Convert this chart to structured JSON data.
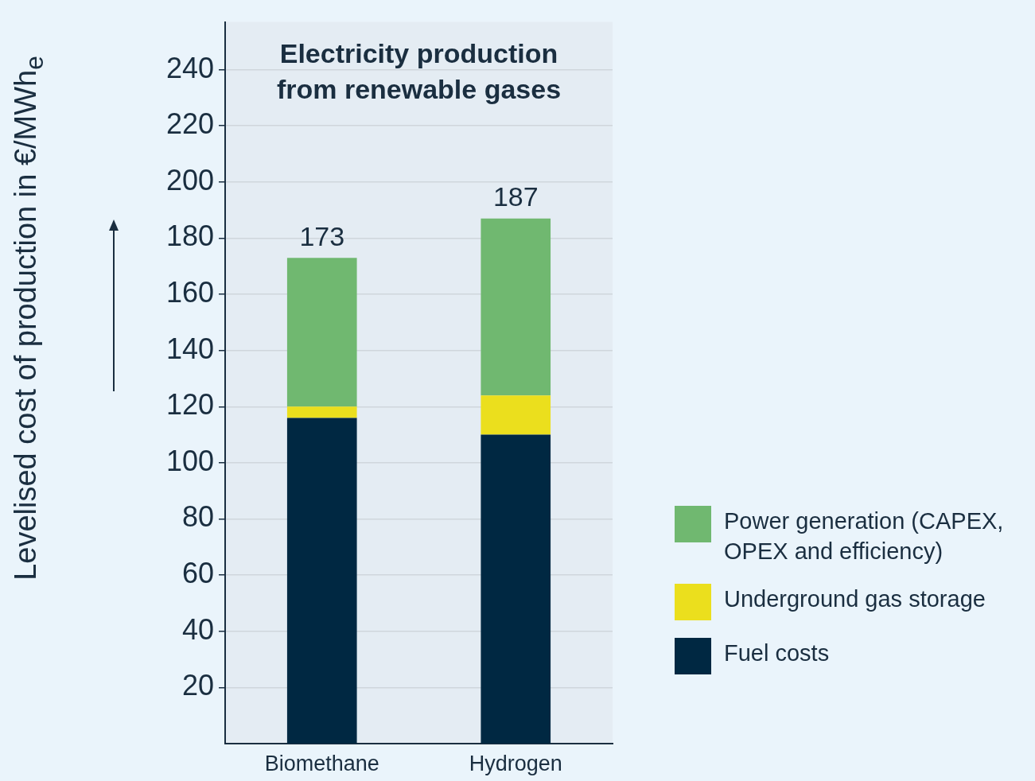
{
  "chart_data": {
    "type": "bar",
    "stacked": true,
    "title": "Electricity production from renewable gases",
    "ylabel": "Levelised cost of production in €/MWh$_{e}$",
    "categories": [
      "Biomethane",
      "Hydrogen"
    ],
    "series": [
      {
        "name": "Fuel costs",
        "color": "#002842",
        "values": [
          116,
          110
        ]
      },
      {
        "name": "Underground gas storage",
        "color": "#ebdf1d",
        "values": [
          4,
          14
        ]
      },
      {
        "name": "Power generation (CAPEX, OPEX and efficiency)",
        "color": "#70b870",
        "values": [
          53,
          63
        ]
      }
    ],
    "totals": [
      "173",
      "187"
    ],
    "ylim": [
      0,
      257
    ],
    "yticks": [
      20,
      40,
      60,
      80,
      100,
      120,
      140,
      160,
      180,
      200,
      220,
      240
    ],
    "grid": "y",
    "legend": "bottom right"
  }
}
